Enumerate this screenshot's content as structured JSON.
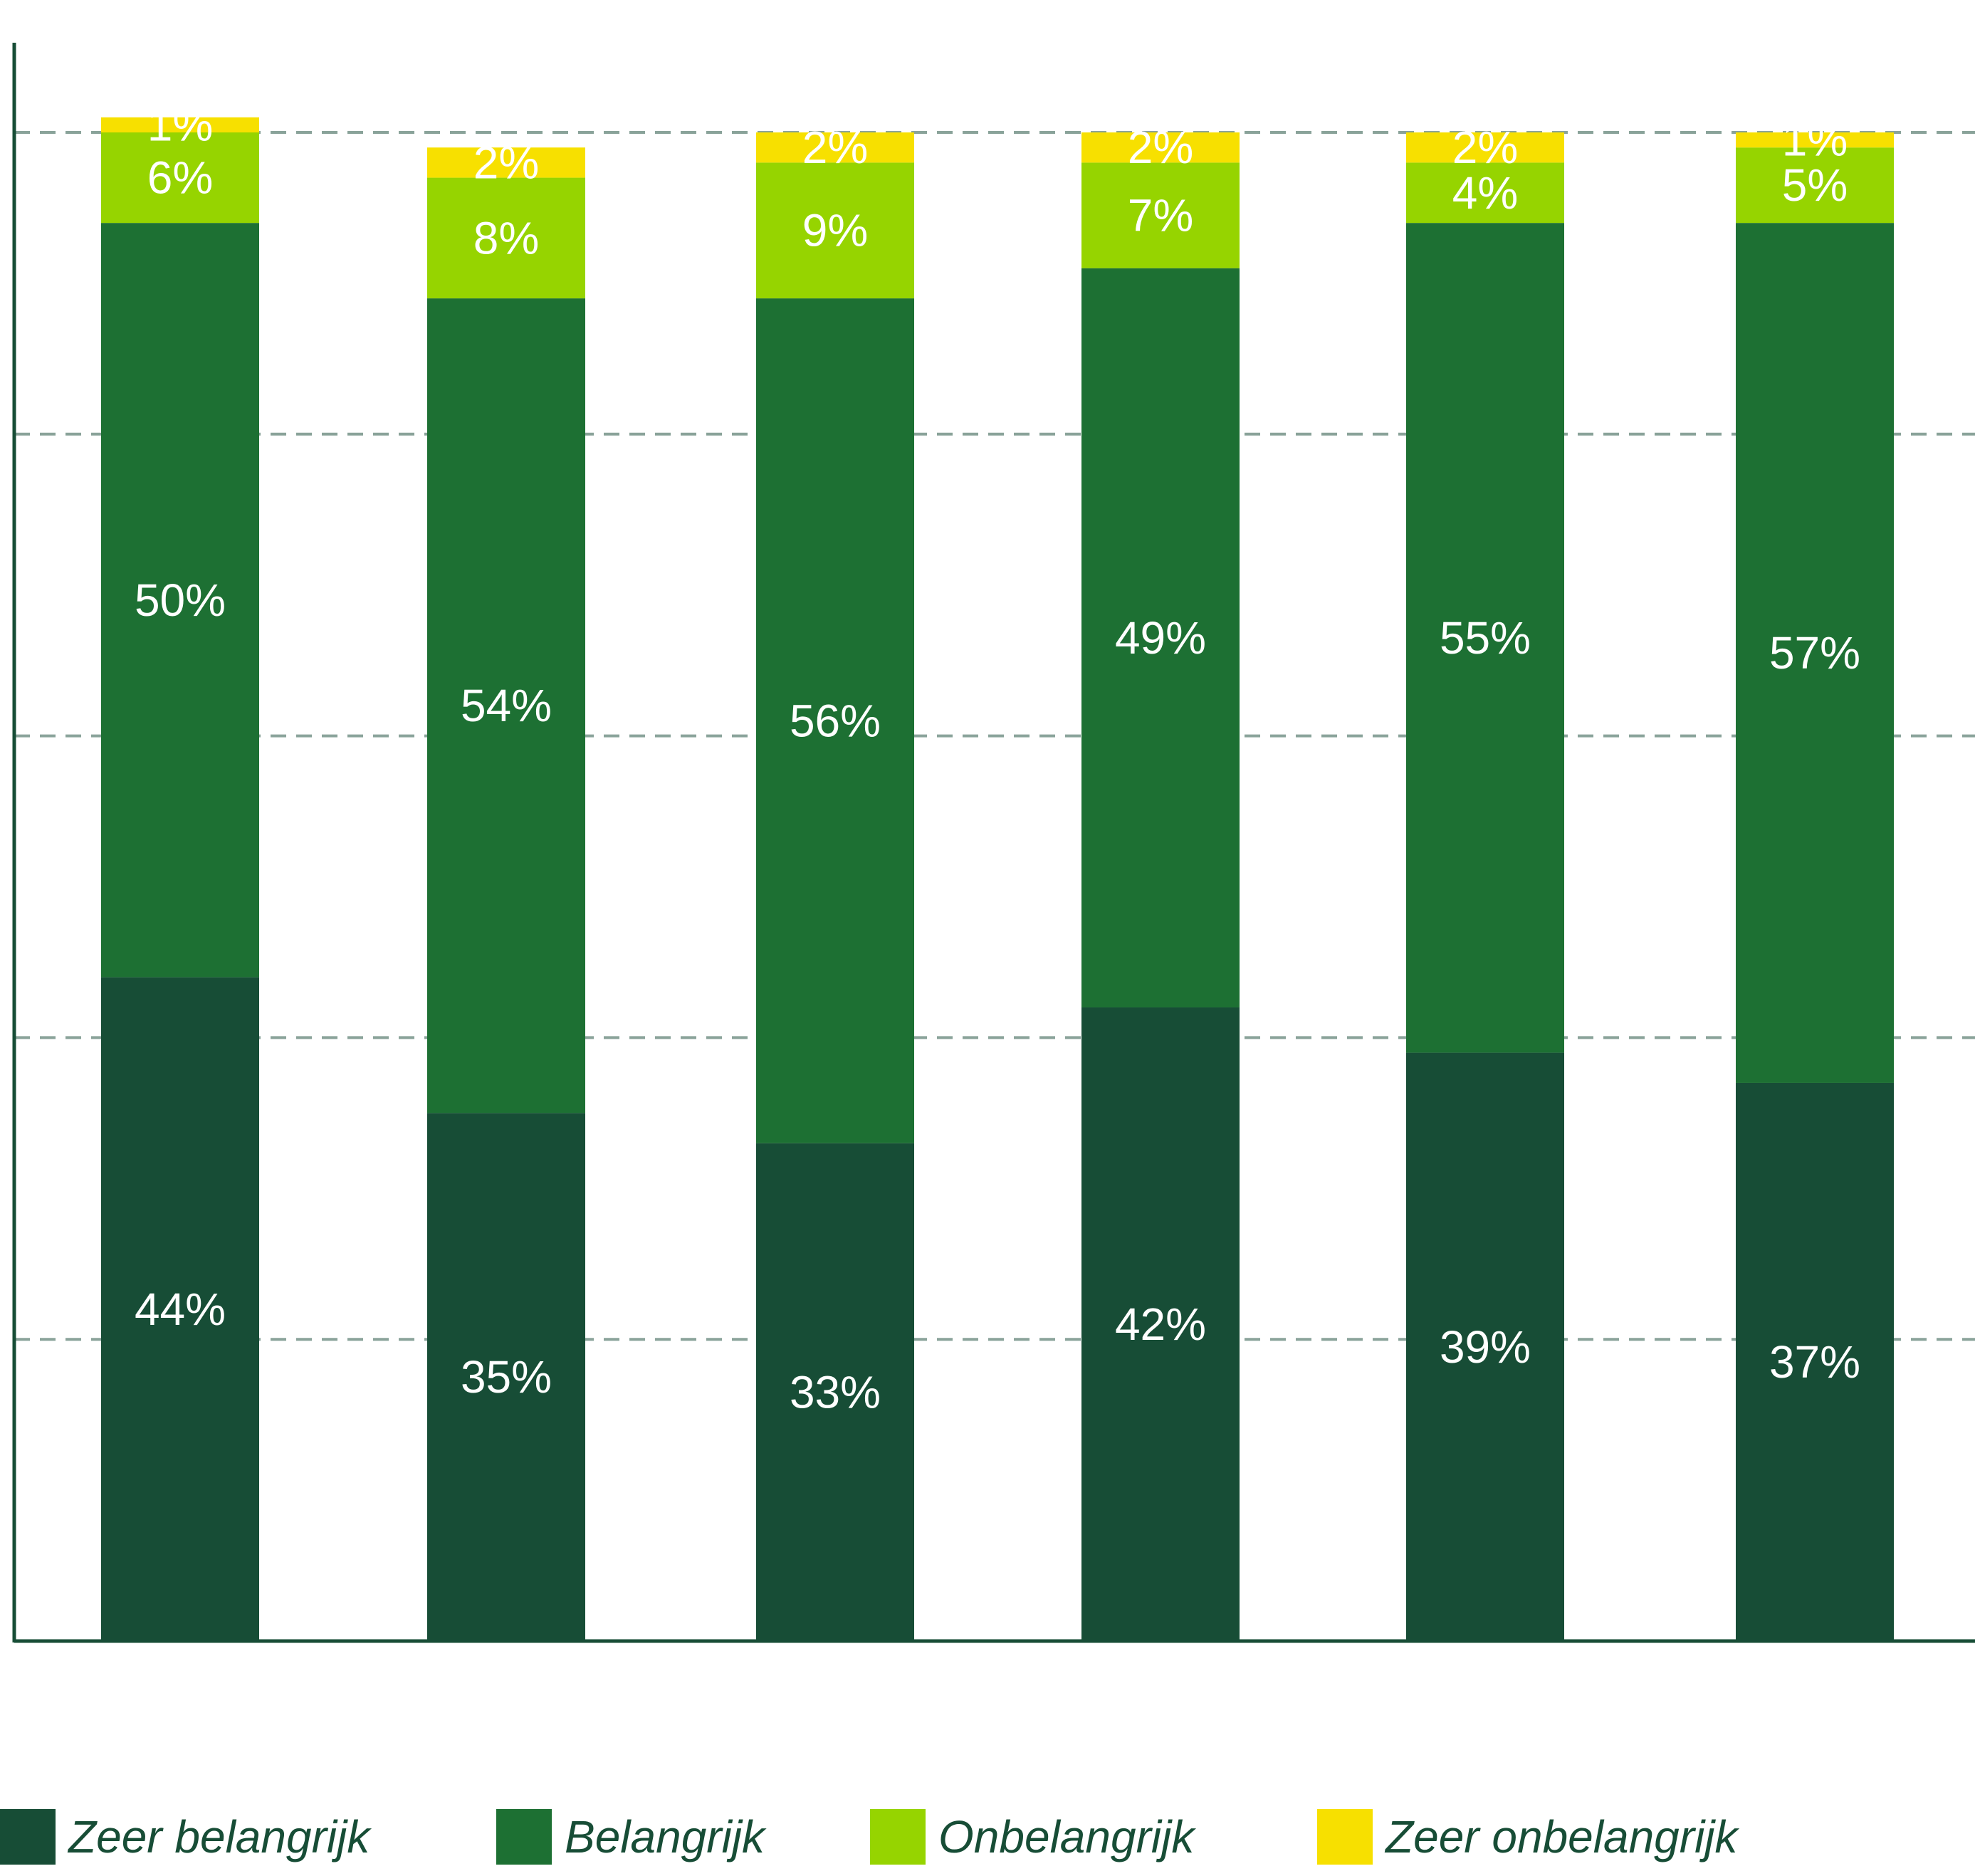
{
  "chart_data": {
    "type": "bar",
    "stacked": true,
    "categories": [
      "",
      "",
      "",
      "",
      "",
      ""
    ],
    "series": [
      {
        "name": "Zeer belangrijk",
        "color": "#174d36",
        "values": [
          44,
          35,
          33,
          42,
          39,
          37
        ],
        "labels": [
          "44%",
          "35%",
          "33%",
          "42%",
          "39%",
          "37%"
        ]
      },
      {
        "name": "Belangrijk",
        "color": "#1d7033",
        "values": [
          50,
          54,
          56,
          49,
          55,
          57
        ],
        "labels": [
          "50%",
          "54%",
          "56%",
          "49%",
          "55%",
          "57%"
        ]
      },
      {
        "name": "Onbelangrijk",
        "color": "#96d400",
        "values": [
          6,
          8,
          9,
          7,
          4,
          5
        ],
        "labels": [
          "6%",
          "8%",
          "9%",
          "7%",
          "4%",
          "5%"
        ]
      },
      {
        "name": "Zeer onbelangrijk",
        "color": "#f7e000",
        "values": [
          1,
          2,
          2,
          2,
          2,
          1
        ],
        "labels": [
          "1%",
          "2%",
          "2%",
          "2%",
          "2%",
          "1%"
        ]
      }
    ],
    "ylim": [
      0,
      100
    ],
    "grid": true,
    "grid_style": "dashed",
    "legend_position": "bottom",
    "title": "",
    "xlabel": "",
    "ylabel": ""
  },
  "legend": {
    "items": [
      {
        "label": "Zeer belangrijk",
        "color": "#174d36"
      },
      {
        "label": "Belangrijk",
        "color": "#1d7033"
      },
      {
        "label": "Onbelangrijk",
        "color": "#96d400"
      },
      {
        "label": "Zeer onbelangrijk",
        "color": "#f7e000"
      }
    ]
  },
  "colors": {
    "axis": "#174d36",
    "grid": "#8aa39a",
    "data_label": "#ffffff"
  }
}
